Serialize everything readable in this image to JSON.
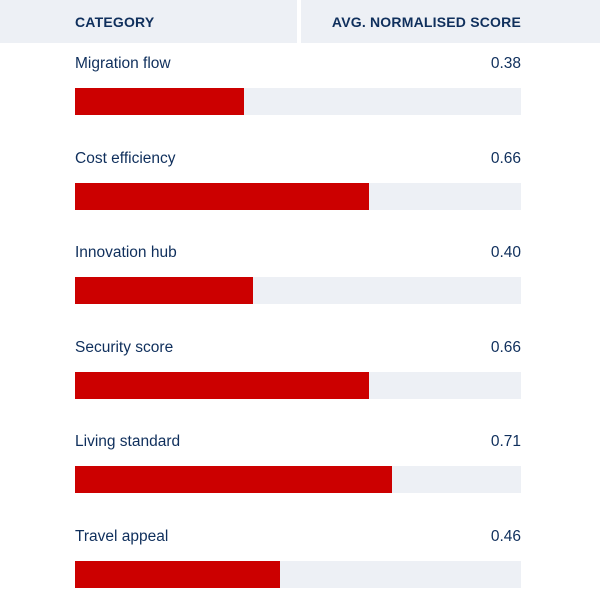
{
  "header": {
    "category": "CATEGORY",
    "score": "AVG. NORMALISED SCORE"
  },
  "chart_data": {
    "type": "bar",
    "orientation": "horizontal",
    "categories": [
      "Migration flow",
      "Cost efficiency",
      "Innovation hub",
      "Security score",
      "Living standard",
      "Travel appeal"
    ],
    "values": [
      0.38,
      0.66,
      0.4,
      0.66,
      0.71,
      0.46
    ],
    "value_labels": [
      "0.38",
      "0.66",
      "0.40",
      "0.66",
      "0.71",
      "0.46"
    ],
    "xlim": [
      0,
      1
    ],
    "bar_color": "#cc0000",
    "track_color": "#edf0f5"
  }
}
